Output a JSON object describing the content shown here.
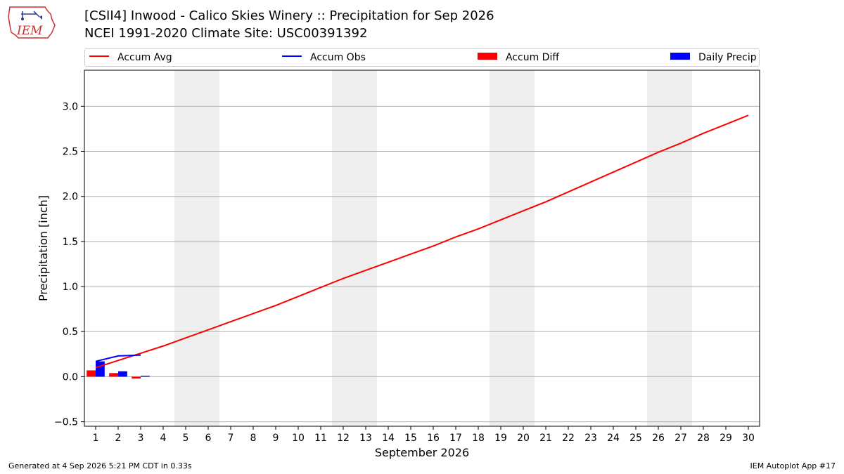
{
  "header": {
    "title_line1": "[CSII4] Inwood - Calico Skies Winery :: Precipitation for Sep 2026",
    "title_line2": "NCEI 1991-2020 Climate Site: USC00391392",
    "logo_text": "IEM"
  },
  "footer": {
    "generated": "Generated at 4 Sep 2026 5:21 PM CDT in 0.33s",
    "app": "IEM Autoplot App #17"
  },
  "legend": {
    "accum_avg": "Accum Avg",
    "accum_obs": "Accum Obs",
    "accum_diff": "Accum Diff",
    "daily_precip": "Daily Precip"
  },
  "colors": {
    "accum_avg": "#ff0000",
    "accum_obs": "#0000ff",
    "accum_diff": "#ff0000",
    "daily_precip": "#0000ff",
    "weekend_band": "#eeeeee",
    "grid": "#b0b0b0"
  },
  "chart_data": {
    "type": "line",
    "xlabel": "September 2026",
    "ylabel": "Precipitation [inch]",
    "x": [
      1,
      2,
      3,
      4,
      5,
      6,
      7,
      8,
      9,
      10,
      11,
      12,
      13,
      14,
      15,
      16,
      17,
      18,
      19,
      20,
      21,
      22,
      23,
      24,
      25,
      26,
      27,
      28,
      29,
      30
    ],
    "xlim": [
      0.5,
      30.5
    ],
    "ylim": [
      -0.55,
      3.4
    ],
    "yticks": [
      -0.5,
      0.0,
      0.5,
      1.0,
      1.5,
      2.0,
      2.5,
      3.0
    ],
    "ytick_labels": [
      "−0.5",
      "0.0",
      "0.5",
      "1.0",
      "1.5",
      "2.0",
      "2.5",
      "3.0"
    ],
    "grid": "horizontal",
    "legend_position": "top",
    "weekend_days": [
      5,
      6,
      12,
      13,
      19,
      20,
      26,
      27
    ],
    "series": [
      {
        "name": "Accum Avg",
        "kind": "line",
        "x": [
          1,
          2,
          3,
          4,
          5,
          6,
          7,
          8,
          9,
          10,
          11,
          12,
          13,
          14,
          15,
          16,
          17,
          18,
          19,
          20,
          21,
          22,
          23,
          24,
          25,
          26,
          27,
          28,
          29,
          30
        ],
        "values": [
          0.1,
          0.18,
          0.26,
          0.34,
          0.43,
          0.52,
          0.61,
          0.7,
          0.79,
          0.89,
          0.99,
          1.09,
          1.18,
          1.27,
          1.36,
          1.45,
          1.55,
          1.64,
          1.74,
          1.84,
          1.94,
          2.05,
          2.16,
          2.27,
          2.38,
          2.49,
          2.59,
          2.7,
          2.8,
          2.9
        ]
      },
      {
        "name": "Accum Obs",
        "kind": "line",
        "x": [
          1,
          2,
          3
        ],
        "values": [
          0.17,
          0.23,
          0.24
        ]
      },
      {
        "name": "Accum Diff",
        "kind": "bar",
        "x": [
          1,
          2,
          3
        ],
        "values": [
          0.07,
          0.04,
          -0.02
        ]
      },
      {
        "name": "Daily Precip",
        "kind": "bar",
        "x": [
          1,
          2,
          3
        ],
        "values": [
          0.17,
          0.06,
          0.01
        ]
      }
    ]
  }
}
